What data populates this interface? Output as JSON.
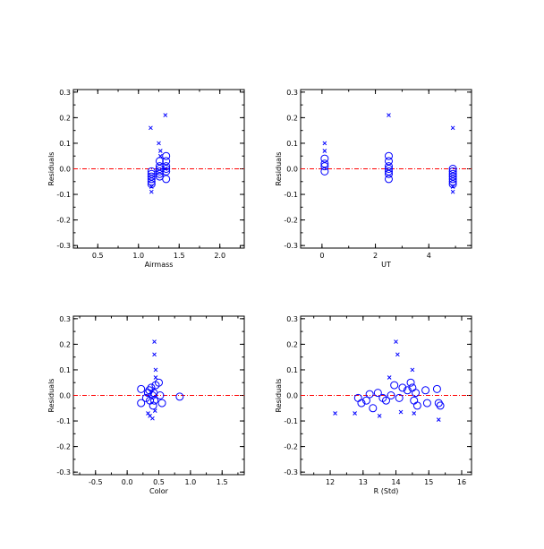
{
  "chart_data": [
    {
      "type": "scatter",
      "xlabel": "Airmass",
      "ylabel": "Residuals",
      "xlim": [
        0.2,
        2.3
      ],
      "ylim": [
        -0.31,
        0.31
      ],
      "xticks": [
        "0.5",
        "1.0",
        "1.5",
        "2.0"
      ],
      "xtick_values": [
        0.5,
        1.0,
        1.5,
        2.0
      ],
      "yticks": [
        "-0.3",
        "-0.2",
        "-0.1",
        "0.0",
        "0.1",
        "0.2",
        "0.3"
      ],
      "ytick_values": [
        -0.3,
        -0.2,
        -0.1,
        0.0,
        0.1,
        0.2,
        0.3
      ],
      "zero_line": 0.0,
      "series": [
        {
          "marker": "circle",
          "points": [
            [
              1.16,
              -0.01
            ],
            [
              1.16,
              -0.02
            ],
            [
              1.16,
              -0.03
            ],
            [
              1.16,
              -0.04
            ],
            [
              1.16,
              -0.05
            ],
            [
              1.16,
              -0.06
            ],
            [
              1.26,
              0.03
            ],
            [
              1.26,
              0.01
            ],
            [
              1.26,
              0.0
            ],
            [
              1.26,
              -0.01
            ],
            [
              1.26,
              -0.02
            ],
            [
              1.26,
              -0.03
            ],
            [
              1.34,
              0.05
            ],
            [
              1.34,
              0.03
            ],
            [
              1.34,
              0.01
            ],
            [
              1.34,
              0.0
            ],
            [
              1.34,
              -0.01
            ],
            [
              1.34,
              -0.04
            ]
          ]
        },
        {
          "marker": "x",
          "points": [
            [
              1.15,
              0.16
            ],
            [
              1.16,
              -0.07
            ],
            [
              1.16,
              -0.09
            ],
            [
              1.25,
              0.1
            ],
            [
              1.27,
              0.07
            ],
            [
              1.27,
              0.05
            ],
            [
              1.33,
              0.21
            ],
            [
              1.33,
              0.0
            ]
          ]
        }
      ]
    },
    {
      "type": "scatter",
      "xlabel": "UT",
      "ylabel": "Residuals",
      "xlim": [
        -0.8,
        5.6
      ],
      "ylim": [
        -0.31,
        0.31
      ],
      "xticks": [
        "0",
        "2",
        "4"
      ],
      "xtick_values": [
        0,
        2,
        4
      ],
      "yticks": [
        "-0.3",
        "-0.2",
        "-0.1",
        "0.0",
        "0.1",
        "0.2",
        "0.3"
      ],
      "ytick_values": [
        -0.3,
        -0.2,
        -0.1,
        0.0,
        0.1,
        0.2,
        0.3
      ],
      "zero_line": 0.0,
      "series": [
        {
          "marker": "circle",
          "points": [
            [
              0.1,
              0.04
            ],
            [
              0.1,
              0.02
            ],
            [
              0.1,
              0.01
            ],
            [
              0.1,
              -0.01
            ],
            [
              2.5,
              0.05
            ],
            [
              2.5,
              0.03
            ],
            [
              2.5,
              0.01
            ],
            [
              2.5,
              0.0
            ],
            [
              2.5,
              -0.01
            ],
            [
              2.5,
              -0.02
            ],
            [
              2.5,
              -0.04
            ],
            [
              4.9,
              0.0
            ],
            [
              4.9,
              -0.01
            ],
            [
              4.9,
              -0.02
            ],
            [
              4.9,
              -0.03
            ],
            [
              4.9,
              -0.04
            ],
            [
              4.9,
              -0.05
            ],
            [
              4.9,
              -0.06
            ]
          ]
        },
        {
          "marker": "x",
          "points": [
            [
              0.1,
              0.1
            ],
            [
              0.1,
              0.07
            ],
            [
              2.5,
              0.21
            ],
            [
              4.9,
              0.16
            ],
            [
              4.9,
              -0.07
            ],
            [
              4.9,
              -0.09
            ]
          ]
        }
      ]
    },
    {
      "type": "scatter",
      "xlabel": "Color",
      "ylabel": "Residuals",
      "xlim": [
        -0.85,
        1.85
      ],
      "ylim": [
        -0.31,
        0.31
      ],
      "xticks": [
        "-0.5",
        "0.0",
        "0.5",
        "1.0",
        "1.5"
      ],
      "xtick_values": [
        -0.5,
        0.0,
        0.5,
        1.0,
        1.5
      ],
      "yticks": [
        "-0.3",
        "-0.2",
        "-0.1",
        "0.0",
        "0.1",
        "0.2",
        "0.3"
      ],
      "ytick_values": [
        -0.3,
        -0.2,
        -0.1,
        0.0,
        0.1,
        0.2,
        0.3
      ],
      "zero_line": 0.0,
      "series": [
        {
          "marker": "circle",
          "points": [
            [
              0.22,
              0.025
            ],
            [
              0.22,
              -0.03
            ],
            [
              0.3,
              -0.01
            ],
            [
              0.33,
              0.01
            ],
            [
              0.35,
              0.02
            ],
            [
              0.36,
              -0.02
            ],
            [
              0.38,
              0.03
            ],
            [
              0.4,
              0.0
            ],
            [
              0.41,
              -0.04
            ],
            [
              0.42,
              0.01
            ],
            [
              0.43,
              -0.02
            ],
            [
              0.45,
              0.04
            ],
            [
              0.5,
              0.05
            ],
            [
              0.52,
              0.0
            ],
            [
              0.55,
              -0.03
            ],
            [
              0.83,
              -0.005
            ]
          ]
        },
        {
          "marker": "x",
          "points": [
            [
              0.33,
              -0.07
            ],
            [
              0.36,
              -0.08
            ],
            [
              0.4,
              -0.09
            ],
            [
              0.43,
              0.21
            ],
            [
              0.43,
              0.16
            ],
            [
              0.45,
              0.1
            ],
            [
              0.45,
              0.07
            ],
            [
              0.44,
              -0.06
            ]
          ]
        }
      ]
    },
    {
      "type": "scatter",
      "xlabel": "R (Std)",
      "ylabel": "Residuals",
      "xlim": [
        11.1,
        16.3
      ],
      "ylim": [
        -0.31,
        0.31
      ],
      "xticks": [
        "12",
        "13",
        "14",
        "15",
        "16"
      ],
      "xtick_values": [
        12,
        13,
        14,
        15,
        16
      ],
      "yticks": [
        "-0.3",
        "-0.2",
        "-0.1",
        "0.0",
        "0.1",
        "0.2",
        "0.3"
      ],
      "ytick_values": [
        -0.3,
        -0.2,
        -0.1,
        0.0,
        0.1,
        0.2,
        0.3
      ],
      "zero_line": 0.0,
      "series": [
        {
          "marker": "circle",
          "points": [
            [
              12.85,
              -0.01
            ],
            [
              12.95,
              -0.03
            ],
            [
              13.1,
              -0.02
            ],
            [
              13.2,
              0.005
            ],
            [
              13.3,
              -0.05
            ],
            [
              13.45,
              0.01
            ],
            [
              13.6,
              -0.01
            ],
            [
              13.7,
              -0.02
            ],
            [
              13.85,
              0.0
            ],
            [
              13.95,
              0.04
            ],
            [
              14.1,
              -0.01
            ],
            [
              14.2,
              0.03
            ],
            [
              14.35,
              0.02
            ],
            [
              14.45,
              0.05
            ],
            [
              14.5,
              0.03
            ],
            [
              14.55,
              -0.02
            ],
            [
              14.6,
              0.01
            ],
            [
              14.65,
              -0.04
            ],
            [
              14.9,
              0.02
            ],
            [
              14.95,
              -0.03
            ],
            [
              15.25,
              0.025
            ],
            [
              15.3,
              -0.03
            ],
            [
              15.35,
              -0.04
            ]
          ]
        },
        {
          "marker": "x",
          "points": [
            [
              12.15,
              -0.07
            ],
            [
              12.75,
              -0.07
            ],
            [
              13.5,
              -0.08
            ],
            [
              13.8,
              0.07
            ],
            [
              14.0,
              0.21
            ],
            [
              14.05,
              0.16
            ],
            [
              14.15,
              -0.065
            ],
            [
              14.5,
              0.1
            ],
            [
              14.55,
              -0.07
            ],
            [
              15.3,
              -0.095
            ]
          ]
        }
      ]
    }
  ]
}
